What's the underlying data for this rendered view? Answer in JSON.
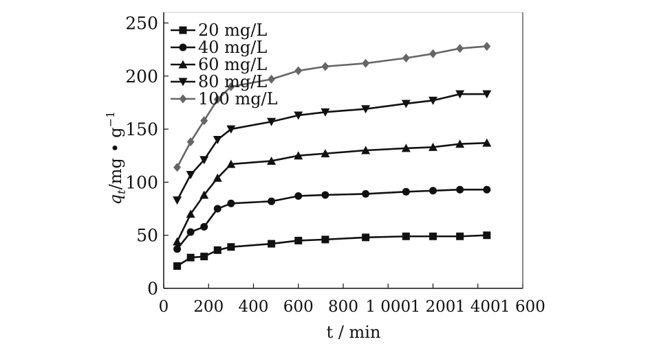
{
  "chart_data": {
    "type": "line",
    "xlabel": "t / min",
    "ylabel": {
      "main": "q",
      "sub": "t",
      "unit": "/mg • g",
      "exp": "−1"
    },
    "xlim": [
      0,
      1600
    ],
    "ylim": [
      0,
      260
    ],
    "xticks": [
      {
        "v": 0,
        "label": "0"
      },
      {
        "v": 200,
        "label": "200"
      },
      {
        "v": 400,
        "label": "400"
      },
      {
        "v": 600,
        "label": "600"
      },
      {
        "v": 800,
        "label": "800"
      },
      {
        "v": 1000,
        "label": "1 000"
      },
      {
        "v": 1200,
        "label": "1 200"
      },
      {
        "v": 1400,
        "label": "1 400"
      },
      {
        "v": 1600,
        "label": "1 600"
      }
    ],
    "yticks": [
      {
        "v": 0,
        "label": "0"
      },
      {
        "v": 50,
        "label": "50"
      },
      {
        "v": 100,
        "label": "100"
      },
      {
        "v": 150,
        "label": "150"
      },
      {
        "v": 200,
        "label": "200"
      },
      {
        "v": 250,
        "label": "250"
      }
    ],
    "x": [
      60,
      120,
      180,
      240,
      300,
      480,
      600,
      720,
      900,
      1080,
      1200,
      1320,
      1440
    ],
    "series": [
      {
        "name": "20 mg/L",
        "marker": "square",
        "color": "#111111",
        "values": [
          21,
          29,
          30,
          36,
          39,
          42,
          45,
          46,
          48,
          49,
          49,
          49,
          50
        ]
      },
      {
        "name": "40 mg/L",
        "marker": "circle",
        "color": "#111111",
        "values": [
          37,
          53,
          58,
          75,
          80,
          82,
          87,
          88,
          89,
          91,
          92,
          93,
          93
        ]
      },
      {
        "name": "60 mg/L",
        "marker": "triangle-up",
        "color": "#111111",
        "values": [
          44,
          70,
          88,
          104,
          117,
          120,
          125,
          127,
          130,
          132,
          133,
          136,
          137
        ]
      },
      {
        "name": "80 mg/L",
        "marker": "triangle-down",
        "color": "#111111",
        "values": [
          83,
          107,
          121,
          140,
          150,
          157,
          163,
          166,
          169,
          174,
          177,
          183,
          183
        ]
      },
      {
        "name": "100 mg/L",
        "marker": "diamond",
        "color": "#666666",
        "values": [
          114,
          138,
          158,
          178,
          190,
          197,
          205,
          209,
          212,
          217,
          221,
          226,
          228
        ]
      }
    ],
    "legend_position": "top-left",
    "grid": false
  }
}
